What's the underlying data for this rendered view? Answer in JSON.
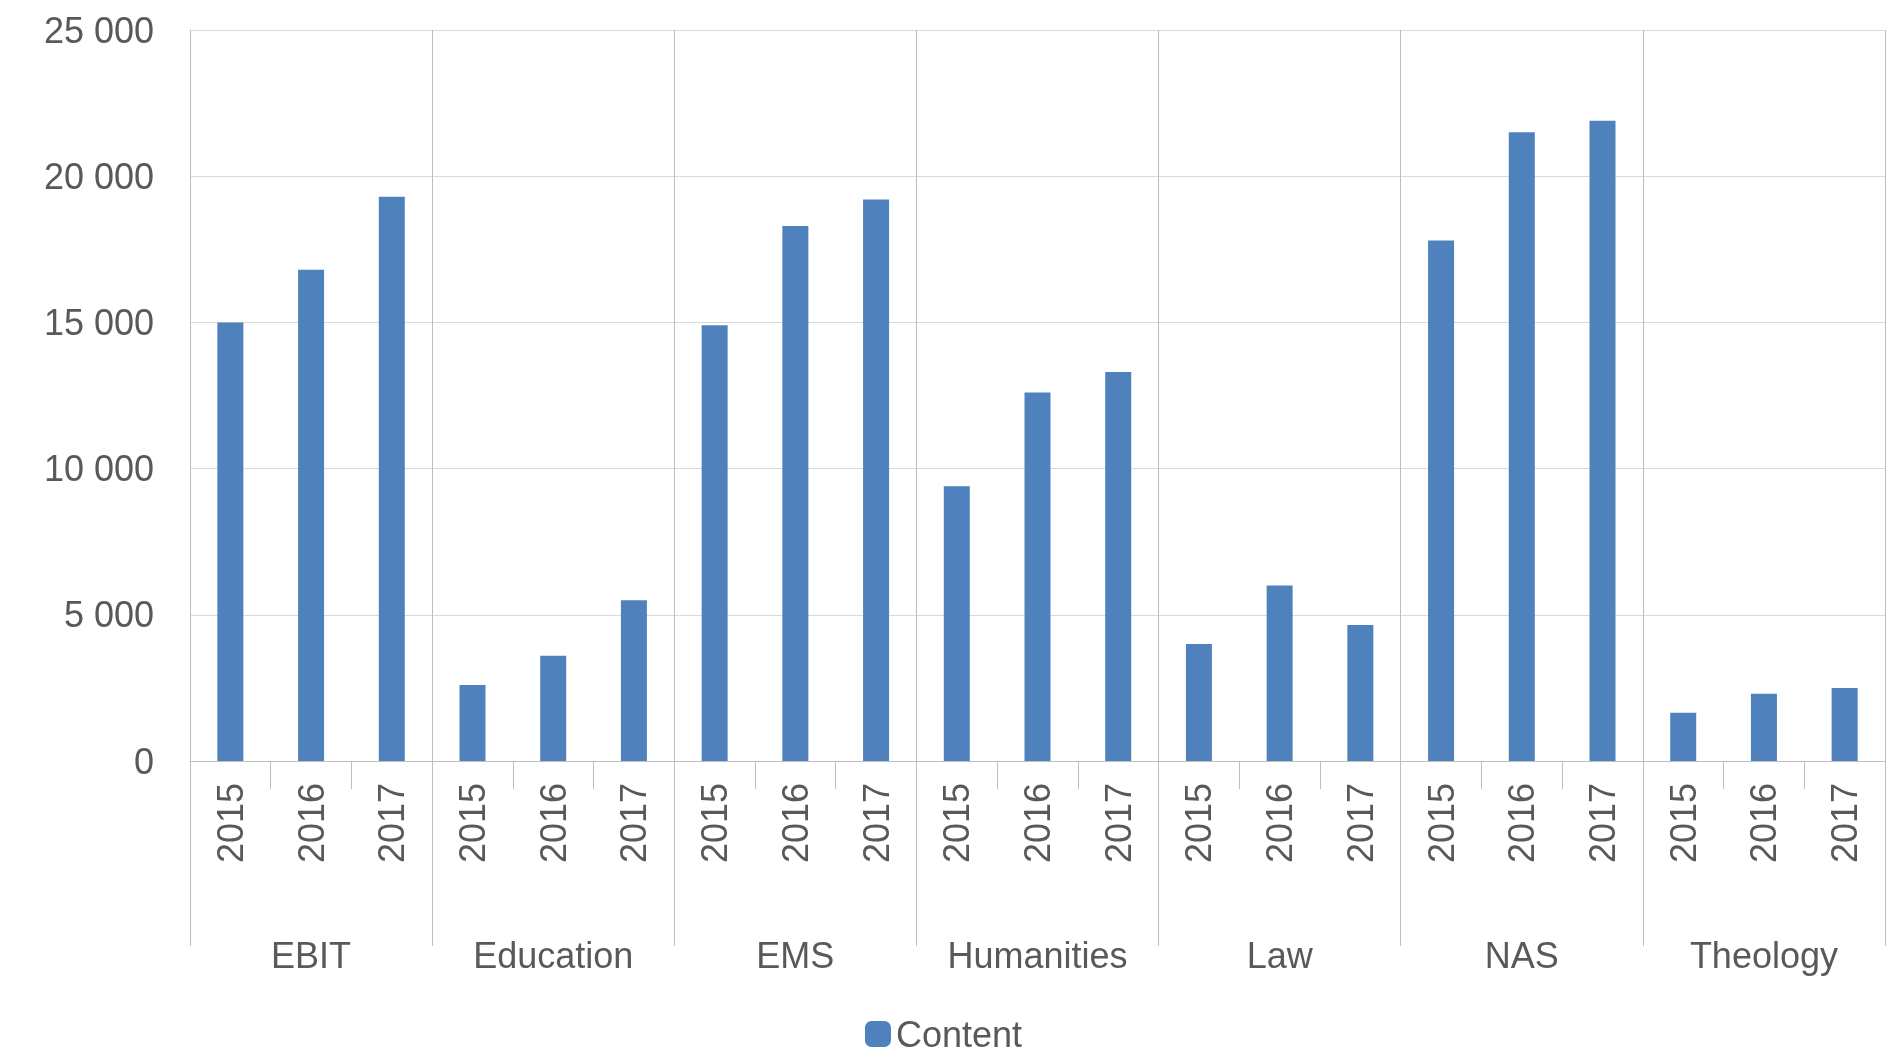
{
  "chart_data": {
    "type": "bar",
    "categories": [
      "2015",
      "2016",
      "2017",
      "2015",
      "2016",
      "2017",
      "2015",
      "2016",
      "2017",
      "2015",
      "2016",
      "2017",
      "2015",
      "2016",
      "2017",
      "2015",
      "2016",
      "2017",
      "2015",
      "2016",
      "2017"
    ],
    "series": [
      {
        "name": "Content",
        "color": "#4f81bd",
        "values": [
          15000,
          16800,
          19300,
          2600,
          3600,
          5500,
          14900,
          18300,
          19200,
          9400,
          12600,
          13300,
          4000,
          6000,
          4650,
          17800,
          21500,
          21900,
          1650,
          2300,
          2500
        ]
      }
    ],
    "annotations": [
      "EBIT",
      "Education",
      "EMS",
      "Humanities",
      "Law",
      "NAS",
      "Theology"
    ],
    "ylim": [
      0,
      25000
    ],
    "yticks": [
      0,
      {
        "value": 5000,
        "label": "5 000"
      },
      {
        "value": 10000,
        "label": "10 000"
      },
      {
        "value": 15000,
        "label": "15 000"
      },
      {
        "value": 20000,
        "label": "20 000"
      },
      {
        "value": 25000,
        "label": "25 000"
      }
    ],
    "grid": "y",
    "legend": "bottom"
  }
}
